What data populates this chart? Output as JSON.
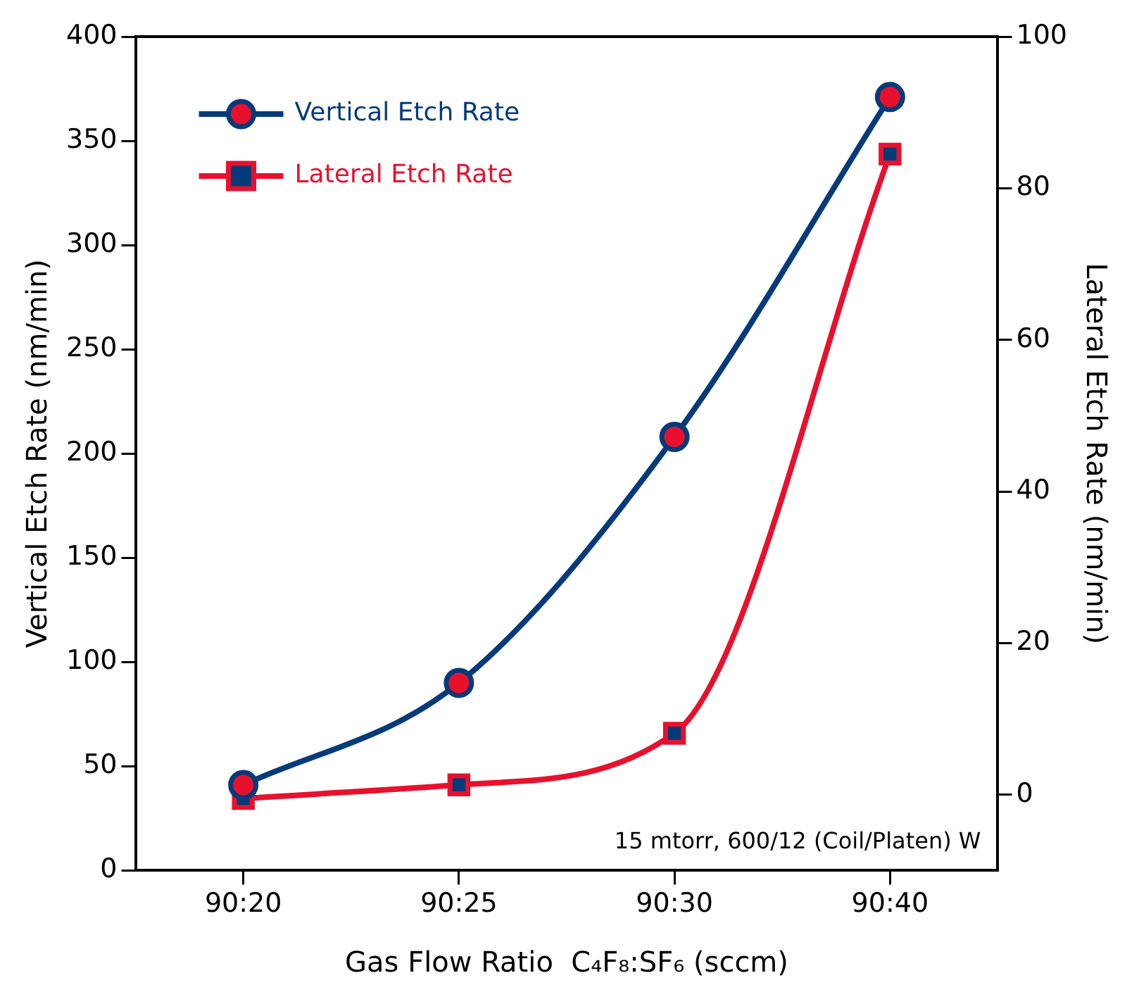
{
  "chart_data": {
    "type": "line",
    "xlabel": "Gas Flow Ratio  C₄F₈:SF₆ (sccm)",
    "ylabel": "Vertical Etch Rate (nm/min)",
    "y2label": "Lateral Etch Rate (nm/min)",
    "categories": [
      "90:20",
      "90:25",
      "90:30",
      "90:40"
    ],
    "series": [
      {
        "name": "Vertical Etch Rate",
        "color": "#063b7a",
        "values": [
          41,
          90,
          208,
          371
        ],
        "marker": "circle"
      },
      {
        "name": "Lateral Etch Rate",
        "color": "#e8112d",
        "values": [
          -0.5,
          1.3,
          8.1,
          84.5
        ],
        "marker": "square",
        "axis": "y2"
      }
    ],
    "ylim": [
      0,
      400
    ],
    "yticks": [
      0,
      50,
      100,
      150,
      200,
      250,
      300,
      350,
      400
    ],
    "y2lim": [
      -10,
      100
    ],
    "y2ticks": [
      0,
      20,
      40,
      60,
      80,
      100
    ],
    "annotations": [
      "15 mtorr, 600/12 (Coil/Platen) W"
    ],
    "legend": "top left",
    "grid": false
  }
}
